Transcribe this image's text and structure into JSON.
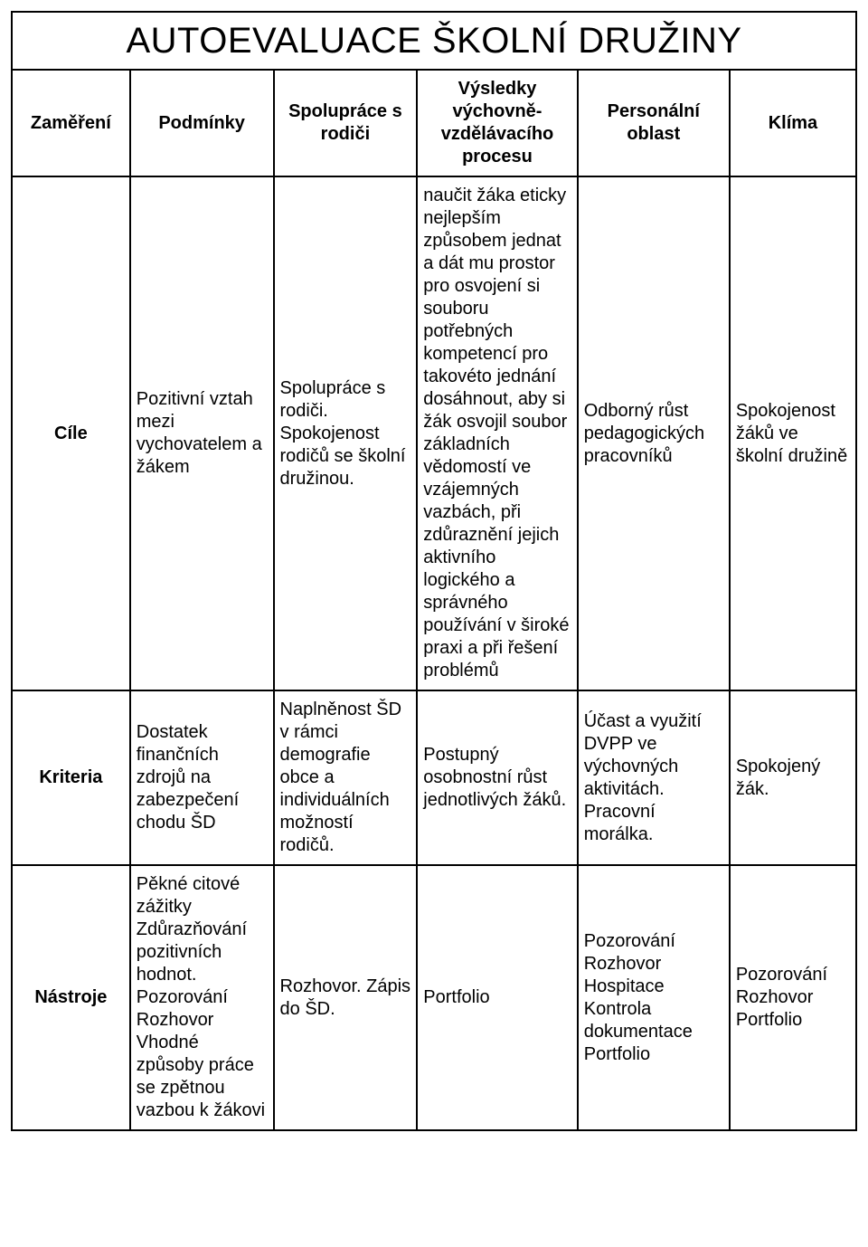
{
  "title": "AUTOEVALUACE ŠKOLNÍ DRUŽINY",
  "headers": {
    "c1": "Zaměření",
    "c2": "Podmínky",
    "c3": "Spolupráce s rodiči",
    "c4": "Výsledky výchovně-vzdělávacího procesu",
    "c5": "Personální oblast",
    "c6": "Klíma"
  },
  "rows": {
    "r1": {
      "label": "Cíle",
      "c2": "Pozitivní vztah mezi vychovatelem a žákem",
      "c3": "Spolupráce s rodiči. Spokojenost rodičů se školní družinou.",
      "c4": "naučit žáka eticky nejlepším způsobem jednat a dát mu prostor pro osvojení si souboru potřebných kompetencí pro takovéto jednání dosáhnout, aby si žák osvojil soubor základních vědomostí ve vzájemných vazbách, při zdůraznění jejich aktivního logického a správného používání v široké praxi a při řešení problémů",
      "c5": "Odborný růst pedagogických pracovníků",
      "c6": "Spokojenost žáků ve školní družině"
    },
    "r2": {
      "label": "Kriteria",
      "c2": "Dostatek finančních zdrojů na zabezpečení chodu ŠD",
      "c3": "Naplněnost ŠD v rámci demografie obce a individuálních možností rodičů.",
      "c4": "Postupný osobnostní růst jednotlivých žáků.",
      "c5": "Účast a využití DVPP ve výchovných aktivitách. Pracovní morálka.",
      "c6": "Spokojený žák."
    },
    "r3": {
      "label": "Nástroje",
      "c2": "Pěkné citové zážitky Zdůrazňování pozitivních hodnot. Pozorování Rozhovor Vhodné způsoby práce se zpětnou vazbou k žákovi",
      "c3": "Rozhovor. Zápis do ŠD.",
      "c4": "Portfolio",
      "c5": "Pozorování Rozhovor Hospitace Kontrola dokumentace Portfolio",
      "c6": "Pozorování Rozhovor Portfolio"
    }
  },
  "style": {
    "border_color": "#000000",
    "background_color": "#ffffff",
    "text_color": "#000000",
    "title_fontsize": 40,
    "header_fontsize": 20,
    "cell_fontsize": 20,
    "font_family": "Arial"
  }
}
